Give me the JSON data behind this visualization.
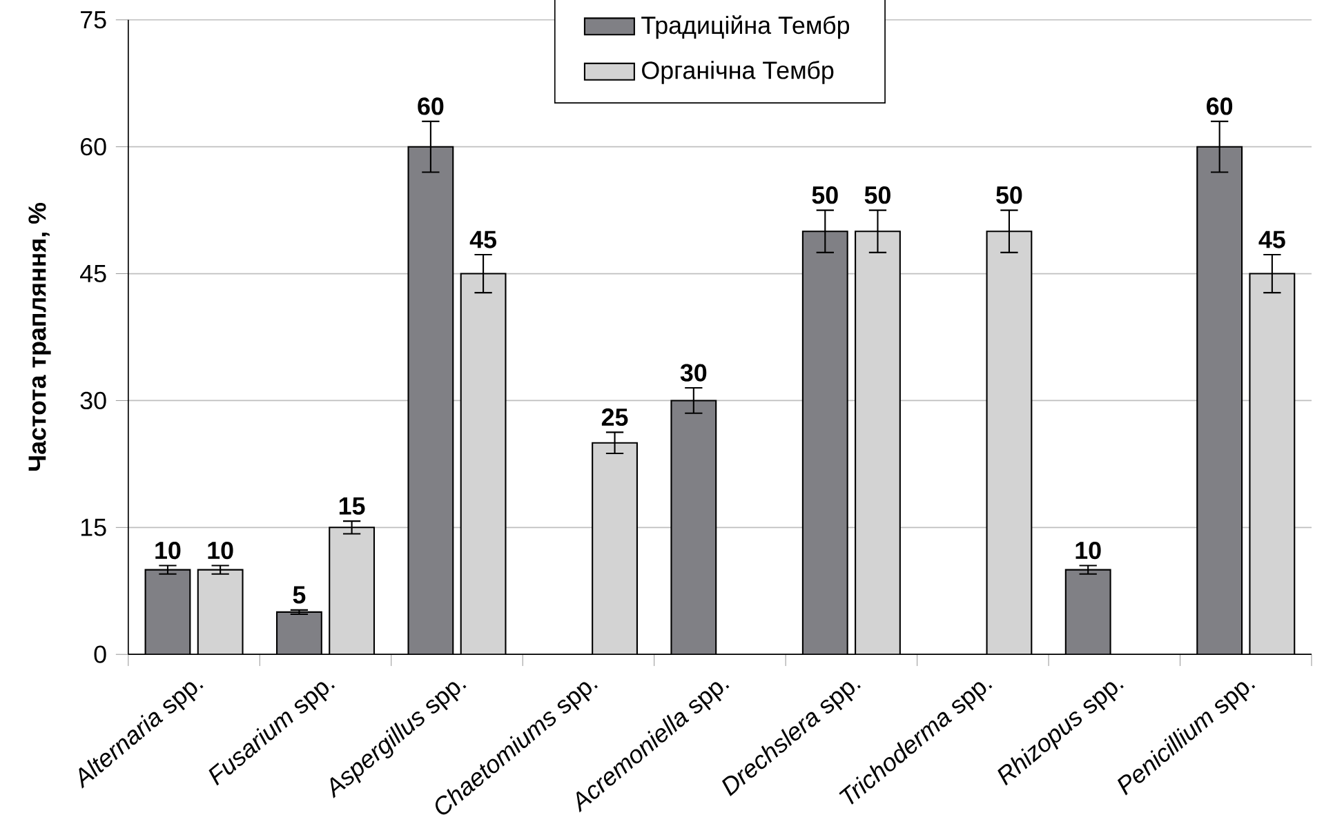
{
  "chart_data": {
    "type": "bar",
    "ylabel": "Частота трапляння, %",
    "categories": [
      "*Alternaria* spp.",
      "*Fusarium* spp.",
      "*Aspergillus* spp.",
      "*Chaetomiums* spp.",
      "*Acremoniella* spp.",
      "*Drechslera* spp.",
      "*Trichoderma* spp.",
      "*Rhizopus* spp.",
      "*Penicillium* spp."
    ],
    "series": [
      {
        "name": "Традиційна Тембр",
        "color": "#808085",
        "values": [
          10,
          5,
          60,
          null,
          30,
          50,
          null,
          10,
          60
        ],
        "errors": [
          0.5,
          0.25,
          3,
          null,
          1.5,
          2.5,
          null,
          0.5,
          3
        ]
      },
      {
        "name": "Органічна Тембр",
        "color": "#d3d3d3",
        "values": [
          10,
          15,
          45,
          25,
          null,
          50,
          50,
          null,
          45
        ],
        "errors": [
          0.5,
          0.75,
          2.25,
          1.25,
          null,
          2.5,
          2.5,
          null,
          2.25
        ]
      }
    ],
    "ylim": [
      0,
      75
    ],
    "yticks": [
      0,
      15,
      30,
      45,
      60,
      75
    ],
    "grid": "y",
    "legend": "top",
    "data_labels": true
  }
}
